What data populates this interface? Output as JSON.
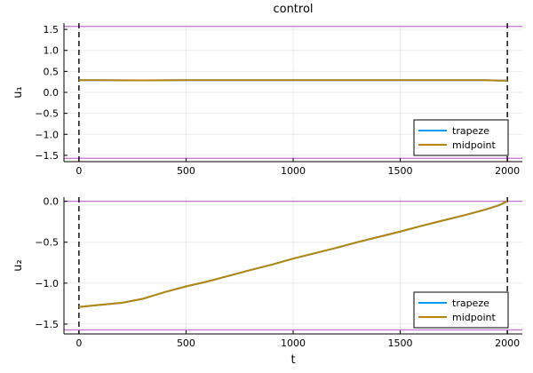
{
  "chart_data": [
    {
      "type": "line",
      "title": "control",
      "xlabel": "",
      "ylabel": "u₁",
      "xlim": [
        -70,
        2070
      ],
      "ylim": [
        -1.65,
        1.65
      ],
      "xticks": [
        0,
        500,
        1000,
        1500,
        2000
      ],
      "yticks": [
        -1.5,
        -1.0,
        -0.5,
        0.0,
        0.5,
        1.0,
        1.5
      ],
      "ytick_labels": [
        "−1.5",
        "−1.0",
        "−0.5",
        "0.0",
        "0.5",
        "1.0",
        "1.5"
      ],
      "bounds": {
        "lower": -1.5708,
        "upper": 1.5708,
        "color": "#c271d2"
      },
      "vlines": {
        "x": [
          0,
          2000
        ],
        "color": "#000000",
        "style": "dashed"
      },
      "legend": {
        "position": "bottom-right"
      },
      "series": [
        {
          "name": "trapeze",
          "color": "#009af9",
          "x": [
            0,
            100,
            300,
            500,
            1000,
            1500,
            1900,
            1960,
            2000
          ],
          "y": [
            0.29,
            0.29,
            0.285,
            0.29,
            0.29,
            0.29,
            0.29,
            0.28,
            0.28
          ]
        },
        {
          "name": "midpoint",
          "color": "#b8860b",
          "x": [
            0,
            100,
            300,
            500,
            1000,
            1500,
            1900,
            1960,
            2000
          ],
          "y": [
            0.29,
            0.29,
            0.285,
            0.29,
            0.29,
            0.29,
            0.29,
            0.28,
            0.28
          ]
        }
      ]
    },
    {
      "type": "line",
      "title": "",
      "xlabel": "t",
      "ylabel": "u₂",
      "xlim": [
        -70,
        2070
      ],
      "ylim": [
        -1.62,
        0.05
      ],
      "xticks": [
        0,
        500,
        1000,
        1500,
        2000
      ],
      "yticks": [
        -1.5,
        -1.0,
        -0.5,
        0.0
      ],
      "ytick_labels": [
        "−1.5",
        "−1.0",
        "−0.5",
        "0.0"
      ],
      "bounds": {
        "lower": -1.5708,
        "upper": 0.0,
        "color": "#c271d2"
      },
      "vlines": {
        "x": [
          0,
          2000
        ],
        "color": "#000000",
        "style": "dashed"
      },
      "legend": {
        "position": "bottom-right"
      },
      "series": [
        {
          "name": "trapeze",
          "color": "#009af9",
          "x": [
            0,
            100,
            200,
            300,
            400,
            500,
            600,
            700,
            800,
            900,
            1000,
            1100,
            1200,
            1300,
            1400,
            1500,
            1600,
            1700,
            1800,
            1900,
            1960,
            2000
          ],
          "y": [
            -1.29,
            -1.265,
            -1.24,
            -1.19,
            -1.11,
            -1.04,
            -0.98,
            -0.91,
            -0.84,
            -0.775,
            -0.7,
            -0.635,
            -0.57,
            -0.5,
            -0.435,
            -0.37,
            -0.3,
            -0.235,
            -0.17,
            -0.1,
            -0.05,
            0.0
          ]
        },
        {
          "name": "midpoint",
          "color": "#b8860b",
          "x": [
            0,
            100,
            200,
            300,
            400,
            500,
            600,
            700,
            800,
            900,
            1000,
            1100,
            1200,
            1300,
            1400,
            1500,
            1600,
            1700,
            1800,
            1900,
            1960,
            2000
          ],
          "y": [
            -1.29,
            -1.265,
            -1.24,
            -1.19,
            -1.11,
            -1.04,
            -0.98,
            -0.91,
            -0.84,
            -0.775,
            -0.7,
            -0.635,
            -0.57,
            -0.5,
            -0.435,
            -0.37,
            -0.3,
            -0.235,
            -0.17,
            -0.1,
            -0.05,
            0.0
          ]
        }
      ]
    }
  ]
}
